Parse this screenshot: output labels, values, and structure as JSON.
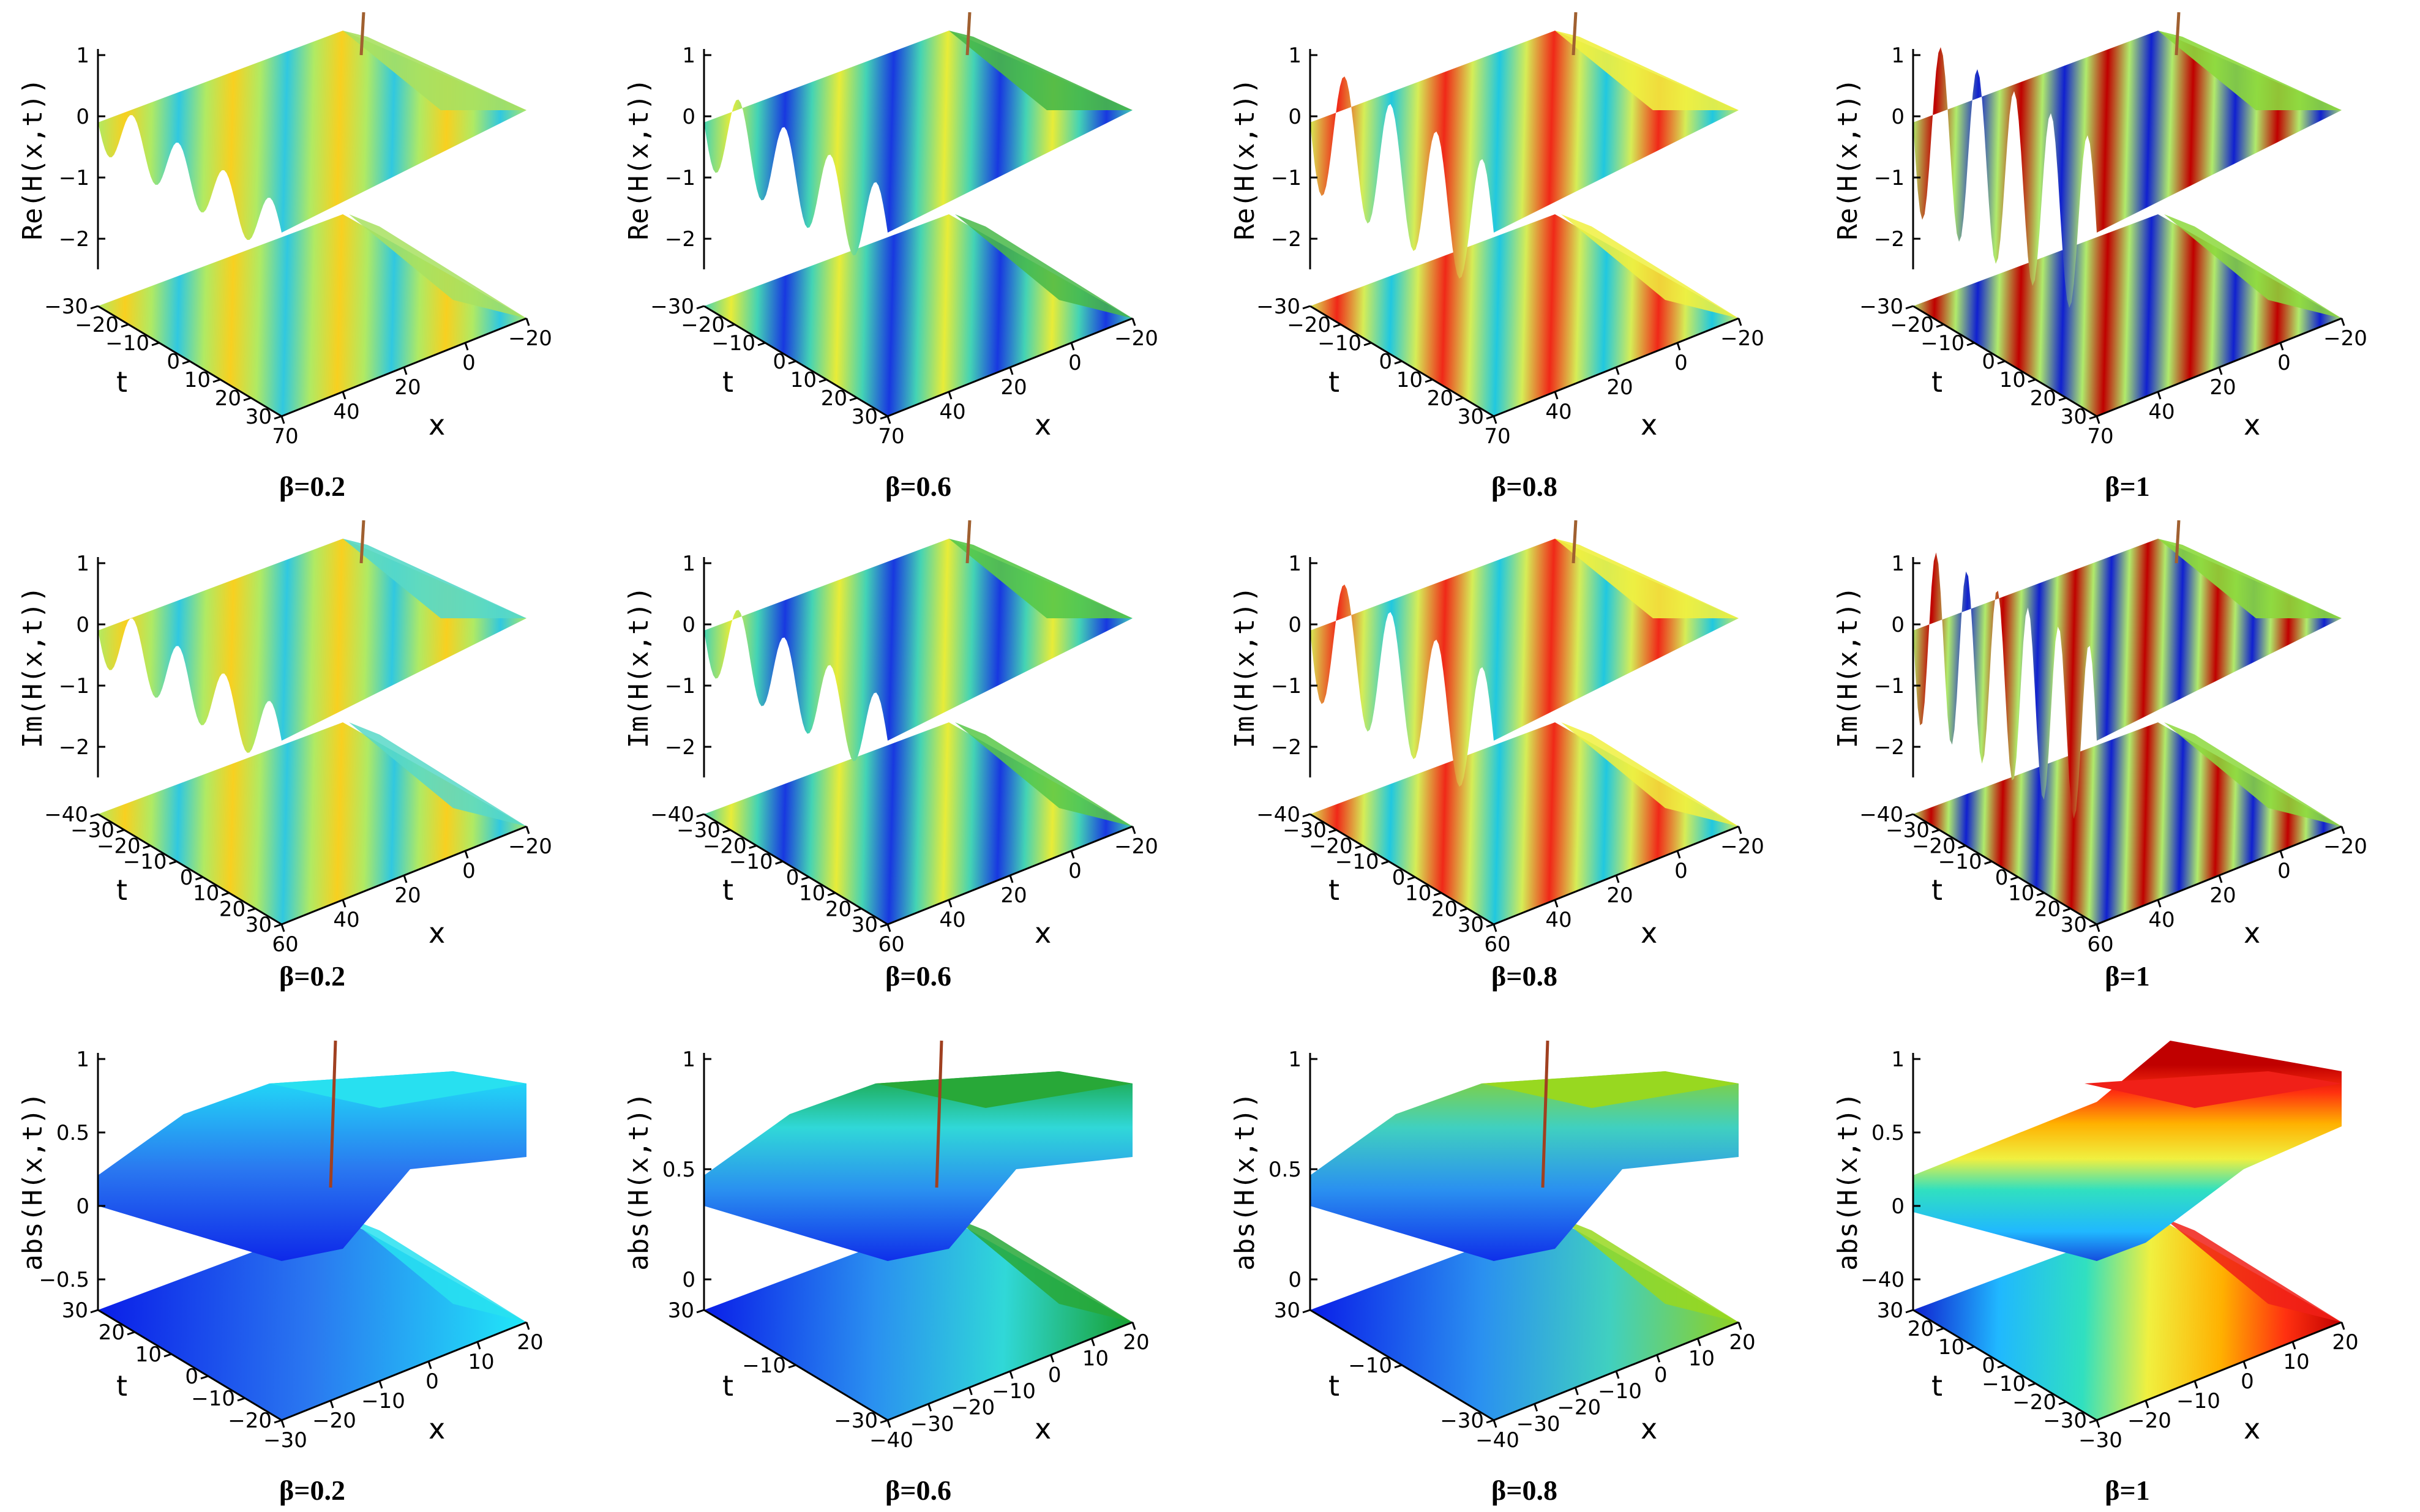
{
  "chart_data": [
    {
      "type": "surface3d",
      "quantity": "Re",
      "beta": "0.2",
      "caption": "β=0.2",
      "zlabel": "Re(H(x,t))",
      "zticks": [
        "1",
        "0",
        "−1",
        "−2"
      ],
      "tlabel": "t",
      "tticks": [
        "−30",
        "−20",
        "−10",
        "0",
        "10",
        "20",
        "30"
      ],
      "xlabel": "x",
      "xticks": [
        "70",
        "40",
        "20",
        "0",
        "−20"
      ],
      "colormap": "yellow-green-cyan",
      "amplitude": 0.45,
      "mix": 0.22,
      "waves": 4
    },
    {
      "type": "surface3d",
      "quantity": "Re",
      "beta": "0.6",
      "caption": "β=0.6",
      "zlabel": "Re(H(x,t))",
      "zticks": [
        "1",
        "0",
        "−1",
        "−2"
      ],
      "tlabel": "t",
      "tticks": [
        "−30",
        "−20",
        "−10",
        "0",
        "10",
        "20",
        "30"
      ],
      "xlabel": "x",
      "xticks": [
        "70",
        "40",
        "20",
        "0",
        "−20"
      ],
      "colormap": "green-cyan-blue",
      "amplitude": 0.55,
      "mix": 0.5,
      "waves": 4
    },
    {
      "type": "surface3d",
      "quantity": "Re",
      "beta": "0.8",
      "caption": "β=0.8",
      "zlabel": "Re(H(x,t))",
      "zticks": [
        "1",
        "0",
        "−1",
        "−2"
      ],
      "tlabel": "t",
      "tticks": [
        "−30",
        "−20",
        "−10",
        "0",
        "10",
        "20",
        "30"
      ],
      "xlabel": "x",
      "xticks": [
        "70",
        "40",
        "20",
        "0",
        "−20"
      ],
      "colormap": "yellow-red-cyan",
      "amplitude": 0.8,
      "mix": 0.75,
      "waves": 4
    },
    {
      "type": "surface3d",
      "quantity": "Re",
      "beta": "1",
      "caption": "β=1",
      "zlabel": "Re(H(x,t))",
      "zticks": [
        "1",
        "0",
        "−1",
        "−2"
      ],
      "tlabel": "t",
      "tticks": [
        "−30",
        "−20",
        "−10",
        "0",
        "10",
        "20",
        "30"
      ],
      "xlabel": "x",
      "xticks": [
        "70",
        "40",
        "20",
        "0",
        "−20"
      ],
      "colormap": "rainbow",
      "amplitude": 1.0,
      "mix": 1.0,
      "waves": 5
    },
    {
      "type": "surface3d",
      "quantity": "Im",
      "beta": "0.2",
      "caption": "β=0.2",
      "zlabel": "Im(H(x,t))",
      "zticks": [
        "1",
        "0",
        "−1",
        "−2"
      ],
      "tlabel": "t",
      "tticks": [
        "−40",
        "−30",
        "−20",
        "−10",
        "0",
        "10",
        "20",
        "30"
      ],
      "xlabel": "x",
      "xticks": [
        "60",
        "40",
        "20",
        "0",
        "−20"
      ],
      "colormap": "yellow-green-cyan",
      "amplitude": 0.5,
      "mix": 0.3,
      "waves": 4
    },
    {
      "type": "surface3d",
      "quantity": "Im",
      "beta": "0.6",
      "caption": "β=0.6",
      "zlabel": "Im(H(x,t))",
      "zticks": [
        "1",
        "0",
        "−1",
        "−2"
      ],
      "tlabel": "t",
      "tticks": [
        "−40",
        "−30",
        "−20",
        "−10",
        "0",
        "10",
        "20",
        "30"
      ],
      "xlabel": "x",
      "xticks": [
        "60",
        "40",
        "20",
        "0",
        "−20"
      ],
      "colormap": "green-cyan-blue",
      "amplitude": 0.55,
      "mix": 0.45,
      "waves": 4
    },
    {
      "type": "surface3d",
      "quantity": "Im",
      "beta": "0.8",
      "caption": "β=0.8",
      "zlabel": "Im(H(x,t))",
      "zticks": [
        "1",
        "0",
        "−1",
        "−2"
      ],
      "tlabel": "t",
      "tticks": [
        "−40",
        "−30",
        "−20",
        "−10",
        "0",
        "10",
        "20",
        "30"
      ],
      "xlabel": "x",
      "xticks": [
        "60",
        "40",
        "20",
        "0",
        "−20"
      ],
      "colormap": "yellow-red-cyan",
      "amplitude": 0.8,
      "mix": 0.75,
      "waves": 4
    },
    {
      "type": "surface3d",
      "quantity": "Im",
      "beta": "1",
      "caption": "β=1",
      "zlabel": "Im(H(x,t))",
      "zticks": [
        "1",
        "0",
        "−1",
        "−2"
      ],
      "tlabel": "t",
      "tticks": [
        "−40",
        "−30",
        "−20",
        "−10",
        "0",
        "10",
        "20",
        "30"
      ],
      "xlabel": "x",
      "xticks": [
        "60",
        "40",
        "20",
        "0",
        "−20"
      ],
      "colormap": "rainbow",
      "amplitude": 1.0,
      "mix": 1.0,
      "waves": 6
    },
    {
      "type": "surface3d",
      "quantity": "abs",
      "beta": "0.2",
      "caption": "β=0.2",
      "zlabel": "abs(H(x,t))",
      "zticks": [
        "1",
        "0.5",
        "0",
        "−0.5"
      ],
      "tlabel": "t",
      "tticks": [
        "30",
        "20",
        "10",
        "0",
        "−10",
        "−20"
      ],
      "xlabel": "x",
      "xticks": [
        "−30",
        "−20",
        "−10",
        "0",
        "10",
        "20"
      ],
      "colormap": "blue-cyan",
      "mix": 0.2
    },
    {
      "type": "surface3d",
      "quantity": "abs",
      "beta": "0.6",
      "caption": "β=0.6",
      "zlabel": "abs(H(x,t))",
      "zticks": [
        "1",
        "0.5",
        "0"
      ],
      "tlabel": "t",
      "tticks": [
        "30",
        "−10",
        "−30"
      ],
      "xlabel": "x",
      "xticks": [
        "−40",
        "−30",
        "−20",
        "−10",
        "0",
        "10",
        "20"
      ],
      "colormap": "blue-cyan-green",
      "mix": 0.55
    },
    {
      "type": "surface3d",
      "quantity": "abs",
      "beta": "0.8",
      "caption": "β=0.8",
      "zlabel": "abs(H(x,t))",
      "zticks": [
        "1",
        "0.5",
        "0"
      ],
      "tlabel": "t",
      "tticks": [
        "30",
        "−10",
        "−30"
      ],
      "xlabel": "x",
      "xticks": [
        "−40",
        "−30",
        "−20",
        "−10",
        "0",
        "10",
        "20"
      ],
      "colormap": "blue-cyan-yellowgreen",
      "mix": 0.7
    },
    {
      "type": "surface3d",
      "quantity": "abs",
      "beta": "1",
      "caption": "β=1",
      "zlabel": "abs(H(x,t))",
      "zticks": [
        "1",
        "0.5",
        "0",
        "−40"
      ],
      "tlabel": "t",
      "tticks": [
        "30",
        "20",
        "10",
        "0",
        "−10",
        "−20",
        "−30"
      ],
      "xlabel": "x",
      "xticks": [
        "−30",
        "−20",
        "−10",
        "0",
        "10",
        "20"
      ],
      "colormap": "blue-red rainbow kink",
      "mix": 1.0
    }
  ]
}
